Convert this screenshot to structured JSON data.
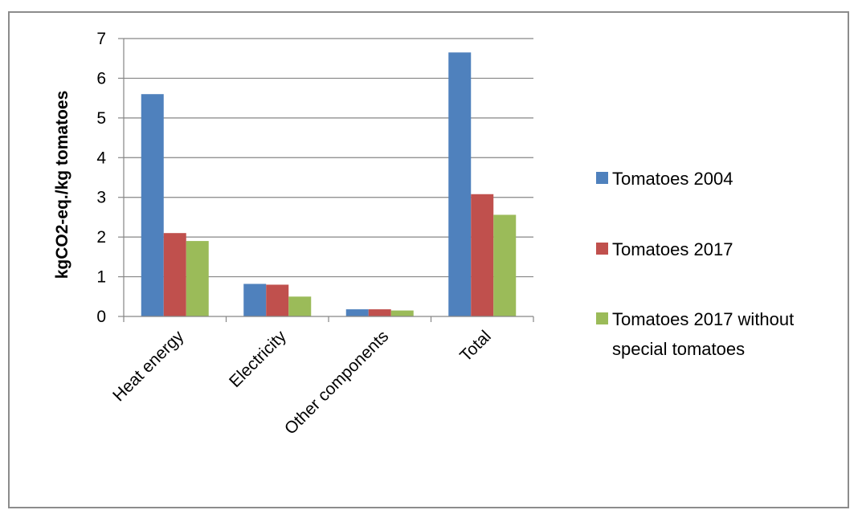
{
  "chart_data": {
    "type": "bar",
    "title": "",
    "xlabel": "",
    "ylabel": "kgCO2-eq./kg tomatoes",
    "ylim": [
      0,
      7
    ],
    "yticks": [
      0,
      1,
      2,
      3,
      4,
      5,
      6,
      7
    ],
    "grid": true,
    "legend_position": "right",
    "categories": [
      "Heat energy",
      "Electricity",
      "Other components",
      "Total"
    ],
    "series": [
      {
        "name": "Tomatoes 2004",
        "color": "#4f81bd",
        "values": [
          5.6,
          0.82,
          0.18,
          6.65
        ]
      },
      {
        "name": "Tomatoes 2017",
        "color": "#c0504d",
        "values": [
          2.1,
          0.8,
          0.18,
          3.08
        ]
      },
      {
        "name": "Tomatoes 2017 without special tomatoes",
        "legend_lines": [
          "Tomatoes 2017 without",
          "special tomatoes"
        ],
        "color": "#9bbb59",
        "values": [
          1.9,
          0.5,
          0.15,
          2.56
        ]
      }
    ]
  }
}
